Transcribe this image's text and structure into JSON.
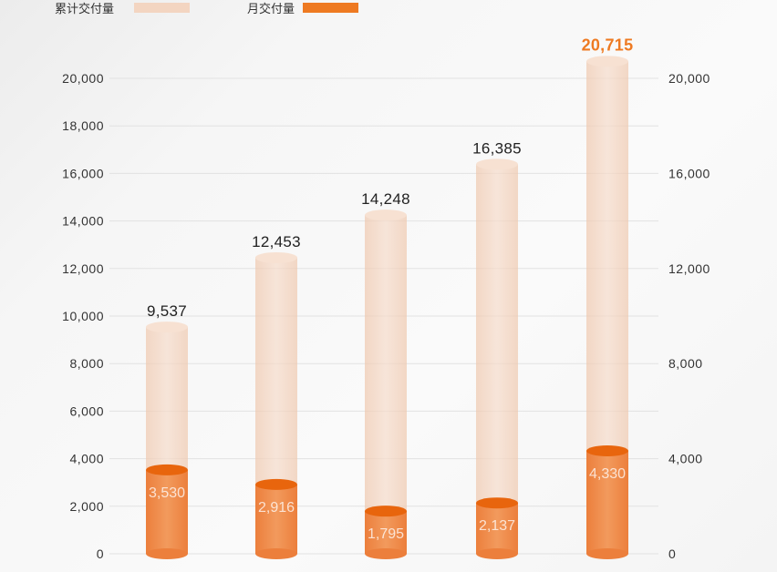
{
  "chart_data": {
    "type": "bar",
    "legend": [
      {
        "name": "累计交付量",
        "color": "#f3d5c1"
      },
      {
        "name": "月交付量",
        "color": "#ee7a22"
      }
    ],
    "legend_position": "top-left",
    "categories": [
      "",
      "",
      "",
      "",
      ""
    ],
    "series": [
      {
        "name": "累计交付量",
        "values": [
          9537,
          12453,
          14248,
          16385,
          20715
        ],
        "color": "#f3d5c1"
      },
      {
        "name": "月交付量",
        "values": [
          3530,
          2916,
          1795,
          2137,
          4330
        ],
        "color": "#ee7a22"
      }
    ],
    "value_labels": [
      "9,537",
      "12,453",
      "14,248",
      "16,385",
      "20,715"
    ],
    "inner_labels": [
      "3,530",
      "2,916",
      "1,795",
      "2,137",
      "4,330"
    ],
    "highlight_color": "#ee7a22",
    "left_axis": {
      "ylim": [
        0,
        20000
      ],
      "ticks": [
        0,
        2000,
        4000,
        6000,
        8000,
        10000,
        12000,
        14000,
        16000,
        18000,
        20000
      ],
      "tick_labels": [
        "0",
        "2,000",
        "4,000",
        "6,000",
        "8,000",
        "10,000",
        "12,000",
        "14,000",
        "16,000",
        "18,000",
        "20,000"
      ]
    },
    "right_axis": {
      "ylim": [
        0,
        20000
      ],
      "ticks": [
        0,
        4000,
        8000,
        12000,
        16000,
        20000
      ],
      "tick_labels": [
        "0",
        "4,000",
        "8,000",
        "12,000",
        "16,000",
        "20,000"
      ]
    },
    "grid": true
  }
}
